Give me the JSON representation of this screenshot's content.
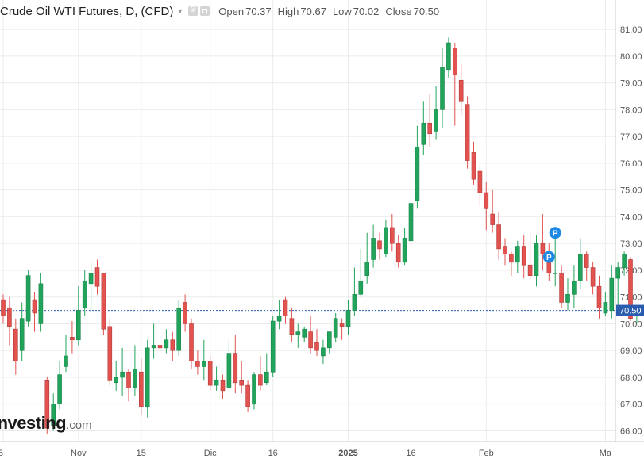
{
  "header": {
    "title": "Crude Oil WTI Futures, D, (CFD)",
    "open_label": "Open",
    "open_value": "70.37",
    "high_label": "High",
    "high_value": "70.67",
    "low_label": "Low",
    "low_value": "70.02",
    "close_label": "Close",
    "close_value": "70.50",
    "settings_icon": "gear-icon",
    "popout_icon": "square-icon"
  },
  "logo": {
    "brand": "Investing",
    "suffix": ".com"
  },
  "colors": {
    "up": "#21a35b",
    "down": "#e2524f",
    "wick_up": "#21a35b",
    "wick_down": "#e2524f",
    "grid": "#ebebeb",
    "axis_text": "#555555",
    "price_line": "#2a5db0",
    "price_tag_bg": "#2a5db0",
    "marker": "#1e88e5"
  },
  "chart_data": {
    "type": "candlestick",
    "title": "Crude Oil WTI Futures, D, (CFD)",
    "ylim": [
      65.6,
      82.1
    ],
    "y_ticks": [
      "66.00",
      "67.00",
      "68.00",
      "69.00",
      "70.00",
      "71.00",
      "72.00",
      "73.00",
      "74.00",
      "75.00",
      "76.00",
      "77.00",
      "78.00",
      "79.00",
      "80.00",
      "81.00"
    ],
    "x_ticks": [
      {
        "index": 0,
        "label": "5"
      },
      {
        "index": 12,
        "label": "Nov"
      },
      {
        "index": 22,
        "label": "15"
      },
      {
        "index": 33,
        "label": "Dic"
      },
      {
        "index": 43,
        "label": "16"
      },
      {
        "index": 55,
        "label": "2025"
      },
      {
        "index": 65,
        "label": "16"
      },
      {
        "index": 77,
        "label": "Feb"
      },
      {
        "index": 96,
        "label": "Ma"
      }
    ],
    "last_price": "70.50",
    "last_price_value": 70.5,
    "markers": [
      {
        "index": 88,
        "price": 73.4,
        "label": "P"
      },
      {
        "index": 87,
        "price": 72.5,
        "label": "P"
      }
    ],
    "candles": [
      [
        70.9,
        70.3,
        71.1,
        70.0
      ],
      [
        70.6,
        69.9,
        71.0,
        69.2
      ],
      [
        69.8,
        68.6,
        70.2,
        68.1
      ],
      [
        69.0,
        70.2,
        70.8,
        68.6
      ],
      [
        70.1,
        71.8,
        72.0,
        69.9
      ],
      [
        70.9,
        70.4,
        71.2,
        69.7
      ],
      [
        70.0,
        71.5,
        71.9,
        69.7
      ],
      [
        67.9,
        66.1,
        68.0,
        65.9
      ],
      [
        66.2,
        67.0,
        67.4,
        66.0
      ],
      [
        67.0,
        68.1,
        68.6,
        66.8
      ],
      [
        68.4,
        68.8,
        69.6,
        68.2
      ],
      [
        69.5,
        69.4,
        70.1,
        68.9
      ],
      [
        69.4,
        70.5,
        71.4,
        69.2
      ],
      [
        70.6,
        71.6,
        72.0,
        70.3
      ],
      [
        71.5,
        71.9,
        72.3,
        70.5
      ],
      [
        72.1,
        71.4,
        72.4,
        71.1
      ],
      [
        71.9,
        69.8,
        71.9,
        69.6
      ],
      [
        69.9,
        67.9,
        70.2,
        67.7
      ],
      [
        67.8,
        68.0,
        68.6,
        67.5
      ],
      [
        68.0,
        68.2,
        69.1,
        67.3
      ],
      [
        68.2,
        67.6,
        68.3,
        67.1
      ],
      [
        67.6,
        68.3,
        69.2,
        67.3
      ],
      [
        68.2,
        66.9,
        68.7,
        66.6
      ],
      [
        66.9,
        69.1,
        69.4,
        66.5
      ],
      [
        69.1,
        69.2,
        70.0,
        68.7
      ],
      [
        69.2,
        69.1,
        69.3,
        68.6
      ],
      [
        69.1,
        69.4,
        69.8,
        68.9
      ],
      [
        69.4,
        69.0,
        69.7,
        68.6
      ],
      [
        69.0,
        70.6,
        70.9,
        68.8
      ],
      [
        70.8,
        70.0,
        71.1,
        69.7
      ],
      [
        70.0,
        68.6,
        70.2,
        68.3
      ],
      [
        68.6,
        68.4,
        69.0,
        68.1
      ],
      [
        68.4,
        68.6,
        69.4,
        67.9
      ],
      [
        68.6,
        67.7,
        68.8,
        67.5
      ],
      [
        67.7,
        67.9,
        68.4,
        67.5
      ],
      [
        67.9,
        67.5,
        68.1,
        67.2
      ],
      [
        67.6,
        68.9,
        69.4,
        67.4
      ],
      [
        68.9,
        67.8,
        69.6,
        67.4
      ],
      [
        67.9,
        67.7,
        68.6,
        67.4
      ],
      [
        67.7,
        66.9,
        67.9,
        66.7
      ],
      [
        67.0,
        68.1,
        68.2,
        66.8
      ],
      [
        68.1,
        67.7,
        68.8,
        67.5
      ],
      [
        67.8,
        68.2,
        68.9,
        67.7
      ],
      [
        68.2,
        70.1,
        70.3,
        68.0
      ],
      [
        70.1,
        70.3,
        70.9,
        69.8
      ],
      [
        70.9,
        70.3,
        71.0,
        70.0
      ],
      [
        70.2,
        69.6,
        70.6,
        69.3
      ],
      [
        69.6,
        69.7,
        70.0,
        69.1
      ],
      [
        69.5,
        69.8,
        69.9,
        69.3
      ],
      [
        69.7,
        69.1,
        70.3,
        68.9
      ],
      [
        69.3,
        69.0,
        69.8,
        68.8
      ],
      [
        68.8,
        69.1,
        69.4,
        68.5
      ],
      [
        69.1,
        69.7,
        69.7,
        68.9
      ],
      [
        69.5,
        70.2,
        70.4,
        69.3
      ],
      [
        70.0,
        69.9,
        70.2,
        69.4
      ],
      [
        69.9,
        70.5,
        70.9,
        69.6
      ],
      [
        70.5,
        71.1,
        72.1,
        70.3
      ],
      [
        71.1,
        71.6,
        72.8,
        71.0
      ],
      [
        71.8,
        72.3,
        73.4,
        71.5
      ],
      [
        72.4,
        73.2,
        73.7,
        72.1
      ],
      [
        73.1,
        72.8,
        73.4,
        72.4
      ],
      [
        72.6,
        73.6,
        73.9,
        72.5
      ],
      [
        73.6,
        73.0,
        74.1,
        72.7
      ],
      [
        73.0,
        72.3,
        73.3,
        72.1
      ],
      [
        72.3,
        73.2,
        73.6,
        72.2
      ],
      [
        73.1,
        74.5,
        74.8,
        72.9
      ],
      [
        74.6,
        76.6,
        77.4,
        74.3
      ],
      [
        76.7,
        77.5,
        78.3,
        76.3
      ],
      [
        77.5,
        77.1,
        78.6,
        76.6
      ],
      [
        77.2,
        78.0,
        78.9,
        76.9
      ],
      [
        78.0,
        79.6,
        80.3,
        77.3
      ],
      [
        79.5,
        80.5,
        80.7,
        79.2
      ],
      [
        80.3,
        79.3,
        80.5,
        77.4
      ],
      [
        79.1,
        78.3,
        79.7,
        77.8
      ],
      [
        78.2,
        76.1,
        78.5,
        75.8
      ],
      [
        76.4,
        75.4,
        76.8,
        75.2
      ],
      [
        75.7,
        74.9,
        75.9,
        74.4
      ],
      [
        74.9,
        74.3,
        75.3,
        73.5
      ],
      [
        74.1,
        73.7,
        75.0,
        73.4
      ],
      [
        73.7,
        72.8,
        74.2,
        72.4
      ],
      [
        72.9,
        72.6,
        73.2,
        72.2
      ],
      [
        72.6,
        72.3,
        72.7,
        71.8
      ],
      [
        72.3,
        72.9,
        73.1,
        71.9
      ],
      [
        72.9,
        72.2,
        73.3,
        71.7
      ],
      [
        72.2,
        71.8,
        73.4,
        71.6
      ],
      [
        71.8,
        73.0,
        73.3,
        71.4
      ],
      [
        73.0,
        72.6,
        74.1,
        72.0
      ],
      [
        72.6,
        71.9,
        73.0,
        71.6
      ],
      [
        71.9,
        71.9,
        73.2,
        71.4
      ],
      [
        71.9,
        70.8,
        72.2,
        70.6
      ],
      [
        70.8,
        71.1,
        71.7,
        70.5
      ],
      [
        71.1,
        71.6,
        72.2,
        70.6
      ],
      [
        71.6,
        72.6,
        73.2,
        71.3
      ],
      [
        72.6,
        72.1,
        72.7,
        71.6
      ],
      [
        72.1,
        71.4,
        72.3,
        71.1
      ],
      [
        71.4,
        70.6,
        71.8,
        70.2
      ],
      [
        70.4,
        70.8,
        71.2,
        70.3
      ],
      [
        70.5,
        71.7,
        72.2,
        70.2
      ],
      [
        71.7,
        72.1,
        72.3,
        70.3
      ],
      [
        72.1,
        72.6,
        72.7,
        71.8
      ],
      [
        72.4,
        70.2,
        72.5,
        70.1
      ],
      [
        70.37,
        70.5,
        70.67,
        70.02
      ]
    ],
    "candle_fields": [
      "open",
      "close",
      "high",
      "low"
    ]
  }
}
